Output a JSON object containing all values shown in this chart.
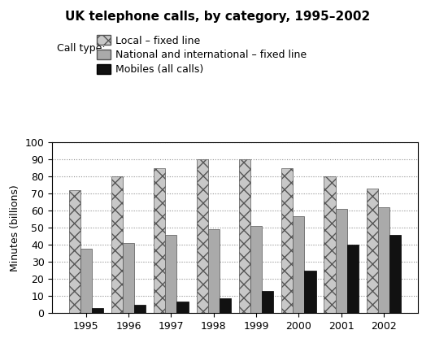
{
  "title": "UK telephone calls, by category, 1995–2002",
  "ylabel": "Minutes (billions)",
  "years": [
    1995,
    1996,
    1997,
    1998,
    1999,
    2000,
    2001,
    2002
  ],
  "local_fixed": [
    72,
    80,
    85,
    90,
    90,
    85,
    80,
    73
  ],
  "national_fixed": [
    38,
    41,
    46,
    49,
    51,
    57,
    61,
    62
  ],
  "mobiles": [
    3,
    5,
    7,
    9,
    13,
    25,
    40,
    46
  ],
  "ylim": [
    0,
    100
  ],
  "yticks": [
    0,
    10,
    20,
    30,
    40,
    50,
    60,
    70,
    80,
    90,
    100
  ],
  "bar_width": 0.27,
  "color_local_face": "#c8c8c8",
  "color_local_edge": "#555555",
  "color_national_face": "#aaaaaa",
  "color_national_edge": "#555555",
  "color_mobiles": "#111111",
  "legend_labels": [
    "Local – fixed line",
    "National and international – fixed line",
    "Mobiles (all calls)"
  ],
  "legend_prefix": "Call type:",
  "figsize": [
    5.35,
    4.38
  ],
  "dpi": 100
}
